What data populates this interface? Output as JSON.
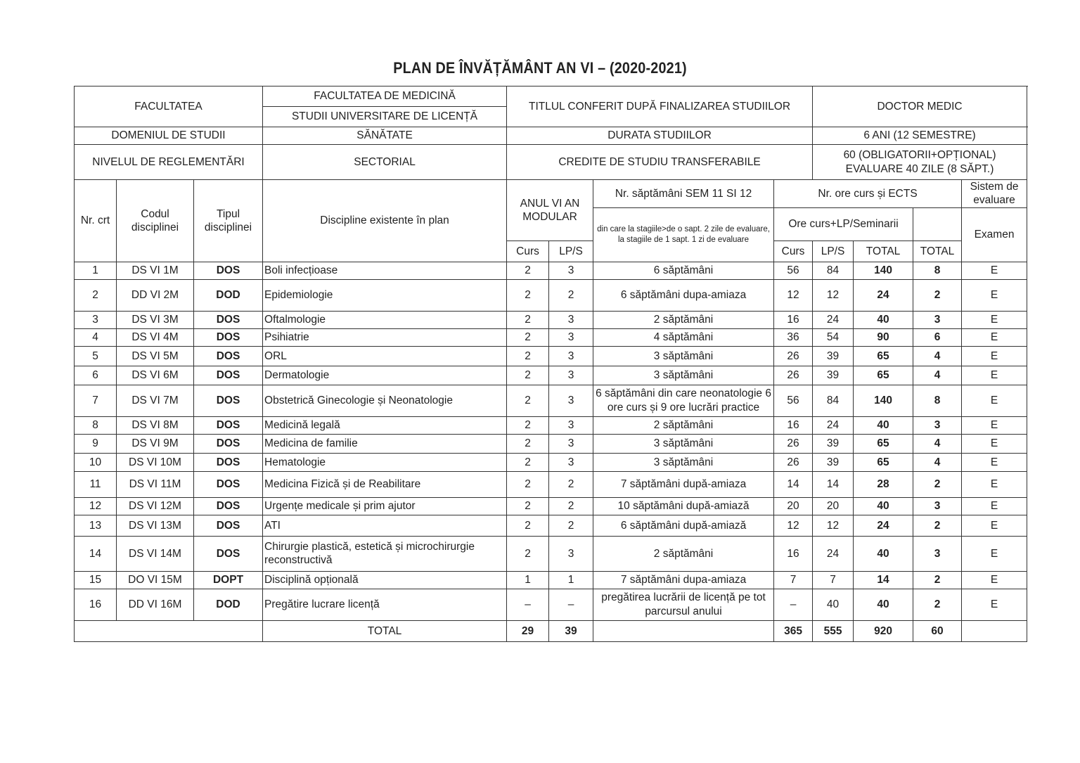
{
  "title": "PLAN DE ÎNVĂȚĂMÂNT  AN VI –  (2020-2021)",
  "info": {
    "facultatea_label": "FACULTATEA",
    "facultatea_value1": "FACULTATEA DE MEDICINĂ",
    "facultatea_value2": "STUDII UNIVERSITARE DE LICENȚĂ",
    "titlu_label": "TITLUL CONFERIT DUPĂ FINALIZAREA STUDIILOR",
    "titlu_value": "DOCTOR MEDIC",
    "domeniu_label": "DOMENIUL DE STUDII",
    "domeniu_value": "SĂNĂTATE",
    "durata_label": "DURATA STUDIILOR",
    "durata_value": "6 ANI (12 SEMESTRE)",
    "nivel_label": "NIVELUL DE REGLEMENTĂRI",
    "nivel_value": "SECTORIAL",
    "credite_label": "CREDITE DE STUDIU TRANSFERABILE",
    "credite_value1": "60 (OBLIGATORII+OPȚIONAL)",
    "credite_value2": "EVALUARE 40 ZILE (8 SĂPT.)"
  },
  "headers": {
    "nr": "Nr. crt",
    "cod": "Codul disciplinei",
    "tip": "Tipul disciplinei",
    "disc": "Discipline existente în plan",
    "anul": "ANUL VI AN MODULAR",
    "curs": "Curs",
    "lps": "LP/S",
    "sapt": "Nr. săptămâni SEM 11 SI 12",
    "sapt_note": "din care la stagiile>de o sapt. 2 zile de evaluare, la stagiile de 1 sapt. 1 zi de evaluare",
    "ore": "Nr. ore curs și ECTS",
    "ore_sub": "Ore curs+LP/Seminarii",
    "total": "TOTAL",
    "ects_total": "TOTAL",
    "sistem": "Sistem de evaluare",
    "examen": "Examen"
  },
  "rows": [
    [
      "1",
      "DS VI 1M",
      "DOS",
      "Boli infecțioase",
      "2",
      "3",
      "6 săptămâni",
      "56",
      "84",
      "140",
      "8",
      "E"
    ],
    [
      "2",
      "DD VI 2M",
      "DOD",
      "Epidemiologie",
      "2",
      "2",
      "6 săptămâni dupa-amiaza",
      "12",
      "12",
      "24",
      "2",
      "E"
    ],
    [
      "3",
      "DS VI 3M",
      "DOS",
      "Oftalmologie",
      "2",
      "3",
      "2 săptămâni",
      "16",
      "24",
      "40",
      "3",
      "E"
    ],
    [
      "4",
      "DS VI 4M",
      "DOS",
      "Psihiatrie",
      "2",
      "3",
      "4 săptămâni",
      "36",
      "54",
      "90",
      "6",
      "E"
    ],
    [
      "5",
      "DS VI 5M",
      "DOS",
      "ORL",
      "2",
      "3",
      "3 săptămâni",
      "26",
      "39",
      "65",
      "4",
      "E"
    ],
    [
      "6",
      "DS VI 6M",
      "DOS",
      "Dermatologie",
      "2",
      "3",
      "3 săptămâni",
      "26",
      "39",
      "65",
      "4",
      "E"
    ],
    [
      "7",
      "DS VI 7M",
      "DOS",
      "Obstetrică Ginecologie și Neonatologie",
      "2",
      "3",
      "6 săptămâni din care neonatologie 6 ore curs și 9 ore lucrări practice",
      "56",
      "84",
      "140",
      "8",
      "E"
    ],
    [
      "8",
      "DS VI 8M",
      "DOS",
      "Medicină legală",
      "2",
      "3",
      "2 săptămâni",
      "16",
      "24",
      "40",
      "3",
      "E"
    ],
    [
      "9",
      "DS VI 9M",
      "DOS",
      "Medicina de familie",
      "2",
      "3",
      "3 săptămâni",
      "26",
      "39",
      "65",
      "4",
      "E"
    ],
    [
      "10",
      "DS VI 10M",
      "DOS",
      "Hematologie",
      "2",
      "3",
      "3 săptămâni",
      "26",
      "39",
      "65",
      "4",
      "E"
    ],
    [
      "11",
      "DS VI 11M",
      "DOS",
      "Medicina Fizică și de Reabilitare",
      "2",
      "2",
      "7 săptămâni după-amiaza",
      "14",
      "14",
      "28",
      "2",
      "E"
    ],
    [
      "12",
      "DS VI 12M",
      "DOS",
      "Urgențe medicale și prim ajutor",
      "2",
      "2",
      "10 săptămâni după-amiază",
      "20",
      "20",
      "40",
      "3",
      "E"
    ],
    [
      "13",
      "DS VI 13M",
      "DOS",
      "ATI",
      "2",
      "2",
      "6 săptămâni după-amiază",
      "12",
      "12",
      "24",
      "2",
      "E"
    ],
    [
      "14",
      "DS VI 14M",
      "DOS",
      "Chirurgie plastică, estetică și microchirurgie reconstructivă",
      "2",
      "3",
      "2 săptămâni",
      "16",
      "24",
      "40",
      "3",
      "E"
    ],
    [
      "15",
      "DO VI 15M",
      "DOPT",
      "Disciplină opțională",
      "1",
      "1",
      "7 săptămâni dupa-amiaza",
      "7",
      "7",
      "14",
      "2",
      "E"
    ],
    [
      "16",
      "DD VI 16M",
      "DOD",
      "Pregătire lucrare licență",
      "–",
      "–",
      "pregătirea lucrării de licență pe tot parcursul anului",
      "–",
      "40",
      "40",
      "2",
      "E"
    ]
  ],
  "total_row": {
    "label": "TOTAL",
    "curs": "29",
    "lps": "39",
    "ore_curs": "365",
    "ore_lps": "555",
    "ore_total": "920",
    "ects": "60"
  }
}
